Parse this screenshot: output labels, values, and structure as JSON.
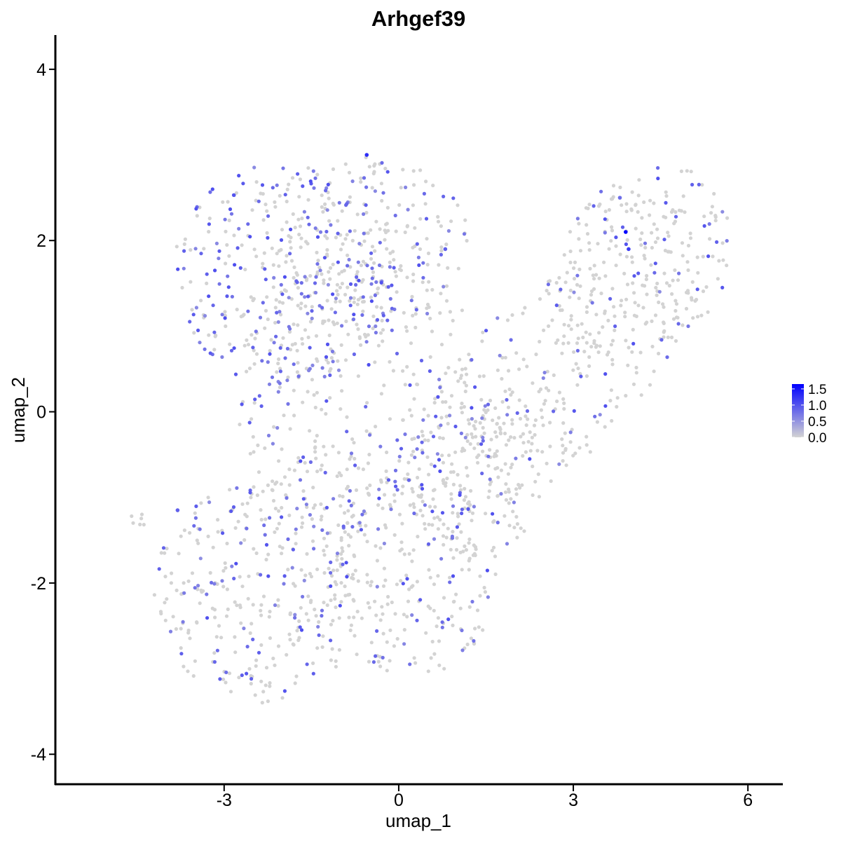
{
  "chart_data": {
    "type": "scatter",
    "title": "Arhgef39",
    "xlabel": "umap_1",
    "ylabel": "umap_2",
    "xlim": [
      -5.9,
      6.6
    ],
    "ylim": [
      -4.35,
      4.4
    ],
    "xticks": [
      -3,
      0,
      3,
      6
    ],
    "yticks": [
      -4,
      -2,
      0,
      2,
      4
    ],
    "xtick_labels": [
      "-3",
      "0",
      "3",
      "6"
    ],
    "ytick_labels": [
      "-4",
      "-2",
      "0",
      "2",
      "4"
    ],
    "grid": false,
    "color_low": "#d3d3d3",
    "color_high": "#0000ff",
    "legend": {
      "position": "right",
      "range": [
        0,
        1.65
      ],
      "ticks": [
        0,
        0.5,
        1.0,
        1.5
      ],
      "tick_labels": [
        "0.0",
        "0.5",
        "1.0",
        "1.5"
      ]
    },
    "point_count_approx": 1700,
    "regions": [
      {
        "cx": -2.0,
        "cy": 1.6,
        "rx": 1.9,
        "ry": 1.3,
        "rot": 0,
        "n": 300,
        "fexp": 0.45
      },
      {
        "cx": -0.6,
        "cy": 2.0,
        "rx": 1.8,
        "ry": 1.0,
        "rot": 0,
        "n": 220,
        "fexp": 0.28
      },
      {
        "cx": 4.2,
        "cy": 1.7,
        "rx": 1.6,
        "ry": 1.1,
        "rot": 20,
        "n": 230,
        "fexp": 0.14
      },
      {
        "cx": 2.6,
        "cy": 0.4,
        "rx": 2.8,
        "ry": 1.1,
        "rot": 28,
        "n": 260,
        "fexp": 0.13
      },
      {
        "cx": -0.6,
        "cy": 0.2,
        "rx": 2.2,
        "ry": 1.6,
        "rot": 0,
        "n": 360,
        "fexp": 0.25
      },
      {
        "cx": -2.4,
        "cy": -2.1,
        "rx": 1.8,
        "ry": 1.3,
        "rot": 0,
        "n": 320,
        "fexp": 0.27
      },
      {
        "cx": 0.2,
        "cy": -1.9,
        "rx": 1.5,
        "ry": 1.2,
        "rot": 0,
        "n": 250,
        "fexp": 0.16
      },
      {
        "cx": 1.8,
        "cy": -0.7,
        "rx": 1.5,
        "ry": 0.8,
        "rot": 30,
        "n": 140,
        "fexp": 0.15
      },
      {
        "cx": -4.5,
        "cy": -1.3,
        "rx": 0.15,
        "ry": 0.15,
        "rot": 0,
        "n": 6,
        "fexp": 0.0
      }
    ],
    "highlight_points": [
      {
        "x": 3.9,
        "y": 2.1,
        "value": 1.65
      },
      {
        "x": 3.95,
        "y": 1.9,
        "value": 1.2
      },
      {
        "x": -0.55,
        "y": 3.0,
        "value": 1.3
      },
      {
        "x": 0.8,
        "y": 1.9,
        "value": 0.9
      },
      {
        "x": -3.8,
        "y": -1.15,
        "value": 0.9
      },
      {
        "x": 3.8,
        "y": 2.5,
        "value": 0.8
      }
    ]
  }
}
